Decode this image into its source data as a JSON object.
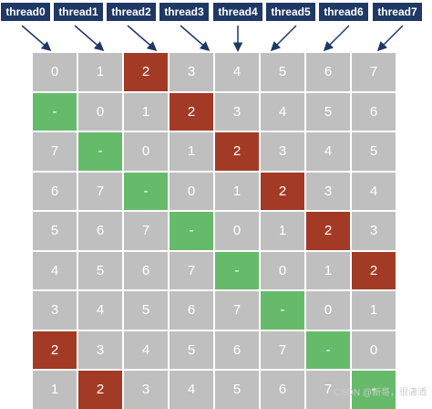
{
  "threads": [
    "thread0",
    "thread1",
    "thread2",
    "thread3",
    "thread4",
    "thread5",
    "thread6",
    "thread7"
  ],
  "grid": [
    [
      [
        "0",
        "g"
      ],
      [
        "1",
        "g"
      ],
      [
        "2",
        "r"
      ],
      [
        "3",
        "g"
      ],
      [
        "4",
        "g"
      ],
      [
        "5",
        "g"
      ],
      [
        "6",
        "g"
      ],
      [
        "7",
        "g"
      ]
    ],
    [
      [
        "-",
        "n"
      ],
      [
        "0",
        "g"
      ],
      [
        "1",
        "g"
      ],
      [
        "2",
        "r"
      ],
      [
        "3",
        "g"
      ],
      [
        "4",
        "g"
      ],
      [
        "5",
        "g"
      ],
      [
        "6",
        "g"
      ]
    ],
    [
      [
        "7",
        "g"
      ],
      [
        "-",
        "n"
      ],
      [
        "0",
        "g"
      ],
      [
        "1",
        "g"
      ],
      [
        "2",
        "r"
      ],
      [
        "3",
        "g"
      ],
      [
        "4",
        "g"
      ],
      [
        "5",
        "g"
      ]
    ],
    [
      [
        "6",
        "g"
      ],
      [
        "7",
        "g"
      ],
      [
        "-",
        "n"
      ],
      [
        "0",
        "g"
      ],
      [
        "1",
        "g"
      ],
      [
        "2",
        "r"
      ],
      [
        "3",
        "g"
      ],
      [
        "4",
        "g"
      ]
    ],
    [
      [
        "5",
        "g"
      ],
      [
        "6",
        "g"
      ],
      [
        "7",
        "g"
      ],
      [
        "-",
        "n"
      ],
      [
        "0",
        "g"
      ],
      [
        "1",
        "g"
      ],
      [
        "2",
        "r"
      ],
      [
        "3",
        "g"
      ]
    ],
    [
      [
        "4",
        "g"
      ],
      [
        "5",
        "g"
      ],
      [
        "6",
        "g"
      ],
      [
        "7",
        "g"
      ],
      [
        "-",
        "n"
      ],
      [
        "0",
        "g"
      ],
      [
        "1",
        "g"
      ],
      [
        "2",
        "r"
      ]
    ],
    [
      [
        "3",
        "g"
      ],
      [
        "4",
        "g"
      ],
      [
        "5",
        "g"
      ],
      [
        "6",
        "g"
      ],
      [
        "7",
        "g"
      ],
      [
        "-",
        "n"
      ],
      [
        "0",
        "g"
      ],
      [
        "1",
        "g"
      ]
    ],
    [
      [
        "2",
        "r"
      ],
      [
        "3",
        "g"
      ],
      [
        "4",
        "g"
      ],
      [
        "5",
        "g"
      ],
      [
        "6",
        "g"
      ],
      [
        "7",
        "g"
      ],
      [
        "-",
        "n"
      ],
      [
        "0",
        "g"
      ]
    ],
    [
      [
        "1",
        "g"
      ],
      [
        "2",
        "r"
      ],
      [
        "3",
        "g"
      ],
      [
        "4",
        "g"
      ],
      [
        "5",
        "g"
      ],
      [
        "6",
        "g"
      ],
      [
        "7",
        "g"
      ],
      [
        "-",
        "n"
      ]
    ]
  ],
  "colors": {
    "header": "#1f3864",
    "gray": "#bfbfbf",
    "red": "#a33a25",
    "green": "#66bb6a"
  },
  "watermark": "CSDN @新哥，很潇洒"
}
